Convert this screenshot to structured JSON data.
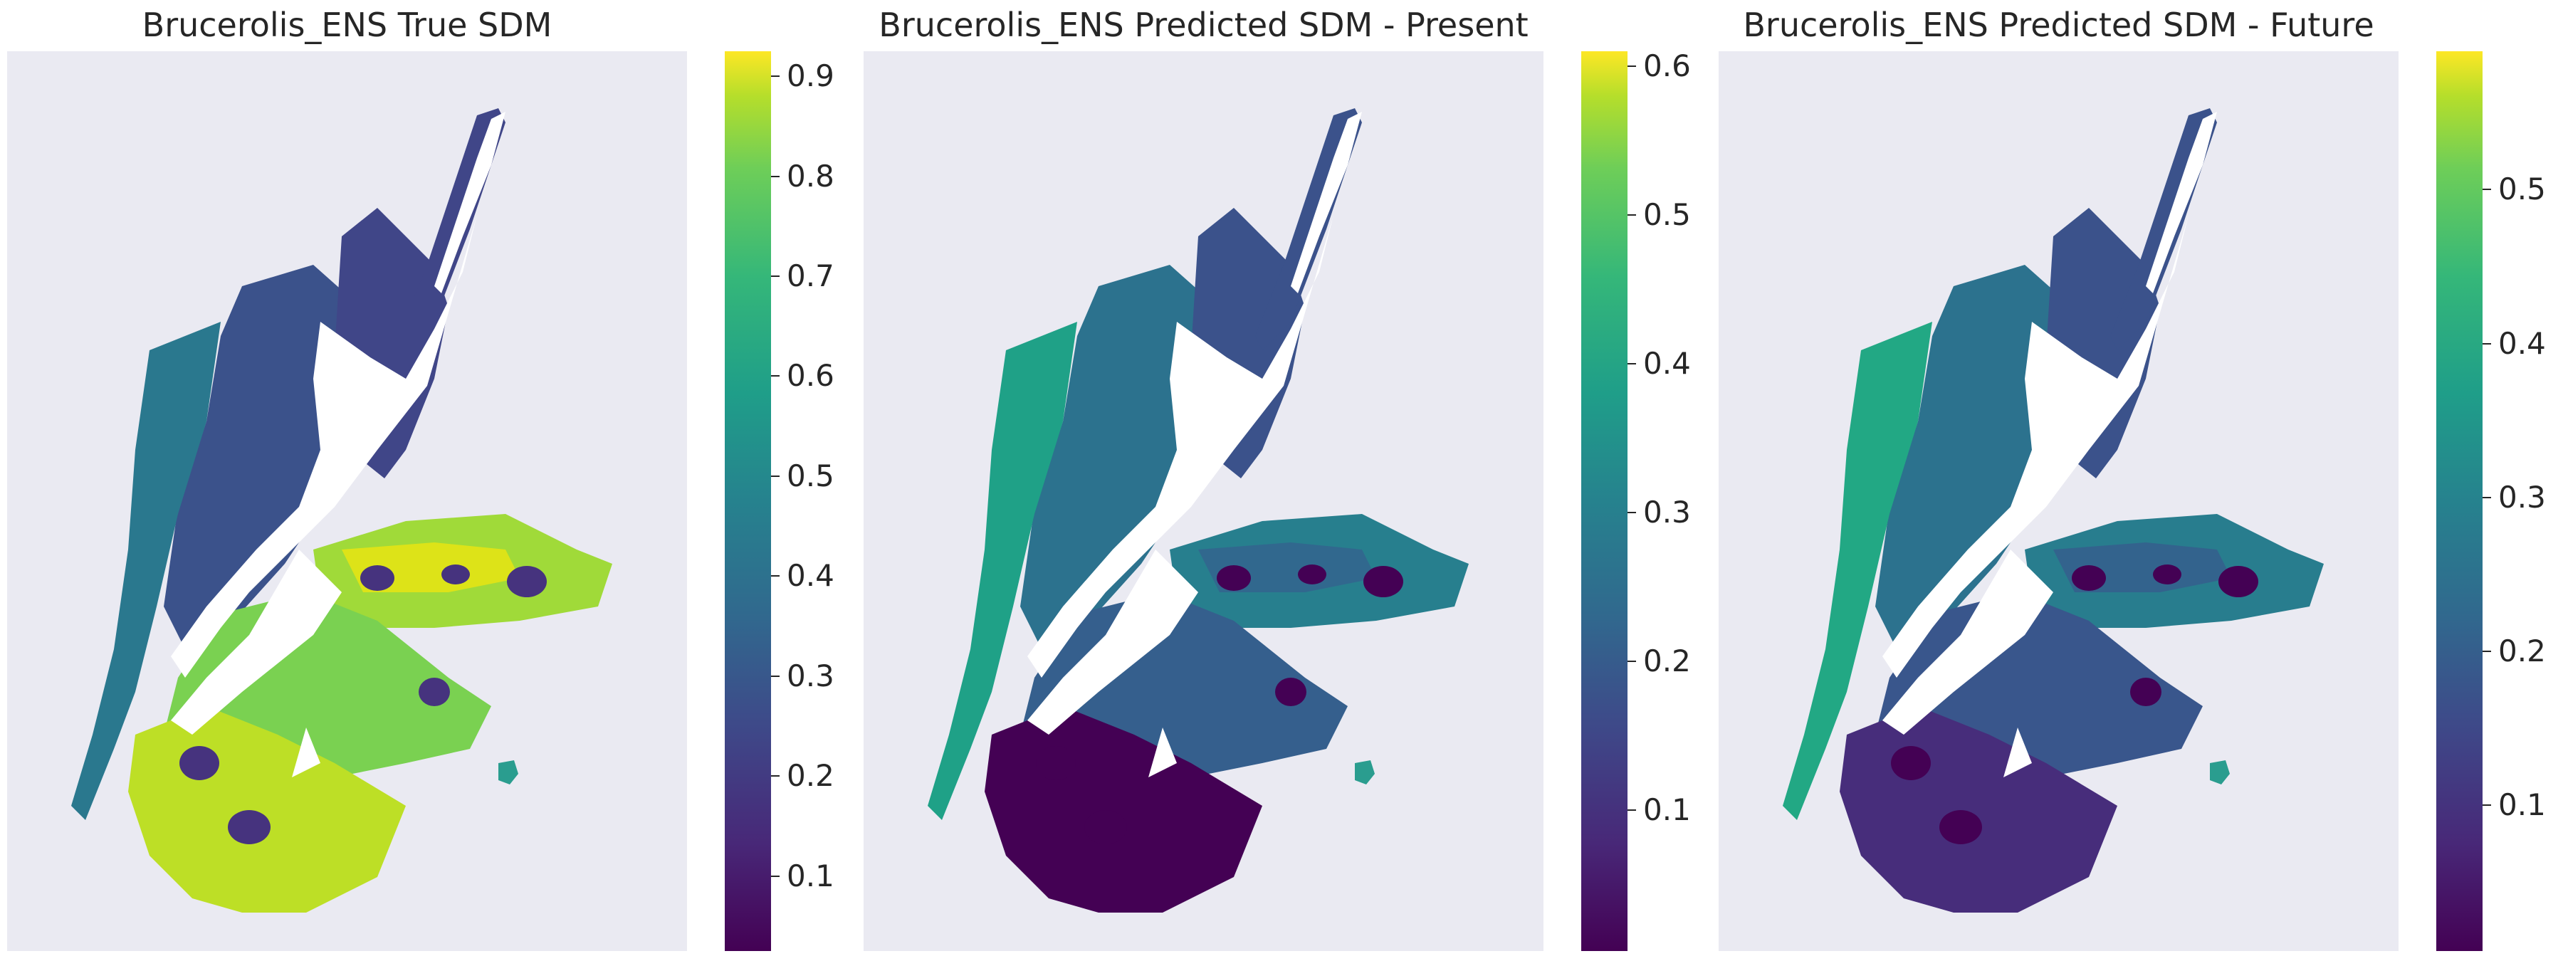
{
  "panels": [
    {
      "title": "Brucerolis_ENS True SDM",
      "colorbar": {
        "min": 0.025,
        "max": 0.925,
        "ticks": [
          "0.1",
          "0.2",
          "0.3",
          "0.4",
          "0.5",
          "0.6",
          "0.7",
          "0.8",
          "0.9"
        ]
      },
      "zones": {
        "land": "#ffffff",
        "west": "#3b528b",
        "north_arc": "#404688",
        "coastal": "#2a788e",
        "east_plateau": "#a0da39",
        "plateau_core": "#dde318",
        "south_plateau": "#7ad151",
        "south_lobe": "#bddf26",
        "holes": "#46337e",
        "islet": "#2a9d8f"
      }
    },
    {
      "title": "Brucerolis_ENS Predicted SDM - Present",
      "colorbar": {
        "min": 0.005,
        "max": 0.61,
        "ticks": [
          "0.1",
          "0.2",
          "0.3",
          "0.4",
          "0.5",
          "0.6"
        ]
      },
      "zones": {
        "land": "#ffffff",
        "west": "#2c728e",
        "north_arc": "#3b528b",
        "coastal": "#1fa187",
        "east_plateau": "#277f8e",
        "plateau_core": "#31688e",
        "south_plateau": "#355f8d",
        "south_lobe": "#440154",
        "holes": "#440154",
        "islet": "#2a9d8f"
      }
    },
    {
      "title": "Brucerolis_ENS Predicted SDM - Future",
      "colorbar": {
        "min": 0.005,
        "max": 0.59,
        "ticks": [
          "0.1",
          "0.2",
          "0.3",
          "0.4",
          "0.5"
        ]
      },
      "zones": {
        "land": "#ffffff",
        "west": "#2c728e",
        "north_arc": "#3b528b",
        "coastal": "#22a884",
        "east_plateau": "#287d8e",
        "plateau_core": "#33638d",
        "south_plateau": "#39568c",
        "south_lobe": "#472d7b",
        "holes": "#440154",
        "islet": "#2a9d8f"
      }
    }
  ]
}
